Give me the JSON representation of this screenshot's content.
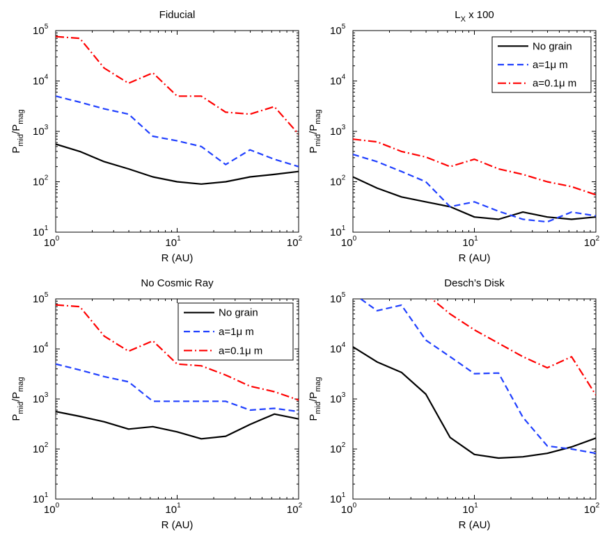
{
  "chart_data": [
    {
      "type": "line",
      "title": "Fiducial",
      "title_sub": "",
      "title_suffix": "",
      "xlabel": "R (AU)",
      "ylabel": {
        "base": "P",
        "num_sub": "mid",
        "den_base": "P",
        "den_sub": "mag"
      },
      "x_scale": "log",
      "y_scale": "log",
      "xlim": [
        1,
        100
      ],
      "ylim": [
        10,
        100000
      ],
      "x_ticks": [
        {
          "base": "10",
          "exp": "0"
        },
        {
          "base": "10",
          "exp": "1"
        },
        {
          "base": "10",
          "exp": "2"
        }
      ],
      "y_ticks": [
        {
          "base": "10",
          "exp": "1"
        },
        {
          "base": "10",
          "exp": "2"
        },
        {
          "base": "10",
          "exp": "3"
        },
        {
          "base": "10",
          "exp": "4"
        },
        {
          "base": "10",
          "exp": "5"
        }
      ],
      "grid": false,
      "legend": null,
      "series": [
        {
          "name": "No grain",
          "color": "#000000",
          "style": "solid",
          "x": [
            1,
            1.58,
            2.51,
            3.98,
            6.31,
            10,
            15.8,
            25.1,
            39.8,
            63.1,
            100
          ],
          "y": [
            560,
            400,
            250,
            180,
            125,
            100,
            90,
            100,
            125,
            140,
            160
          ]
        },
        {
          "name": "a=1μ m",
          "color": "#1f3fff",
          "style": "dashed",
          "x": [
            1,
            1.58,
            2.51,
            3.98,
            6.31,
            10,
            15.8,
            25.1,
            39.8,
            63.1,
            100
          ],
          "y": [
            5000,
            3800,
            2800,
            2200,
            800,
            650,
            500,
            220,
            430,
            280,
            200
          ]
        },
        {
          "name": "a=0.1μ m",
          "color": "#ff0000",
          "style": "dashdot",
          "x": [
            1,
            1.58,
            2.51,
            3.98,
            6.31,
            10,
            15.8,
            25.1,
            39.8,
            63.1,
            100
          ],
          "y": [
            76000,
            70000,
            18000,
            9000,
            14500,
            5000,
            5000,
            2400,
            2200,
            3100,
            880
          ]
        }
      ]
    },
    {
      "type": "line",
      "title": "L",
      "title_sub": "X",
      "title_suffix": " x 100",
      "xlabel": "R (AU)",
      "ylabel": {
        "base": "P",
        "num_sub": "mid",
        "den_base": "P",
        "den_sub": "mag"
      },
      "x_scale": "log",
      "y_scale": "log",
      "xlim": [
        1,
        100
      ],
      "ylim": [
        10,
        100000
      ],
      "x_ticks": [
        {
          "base": "10",
          "exp": "0"
        },
        {
          "base": "10",
          "exp": "1"
        },
        {
          "base": "10",
          "exp": "2"
        }
      ],
      "y_ticks": [
        {
          "base": "10",
          "exp": "1"
        },
        {
          "base": "10",
          "exp": "2"
        },
        {
          "base": "10",
          "exp": "3"
        },
        {
          "base": "10",
          "exp": "4"
        },
        {
          "base": "10",
          "exp": "5"
        }
      ],
      "grid": false,
      "legend": "top-right",
      "series": [
        {
          "name": "No grain",
          "color": "#000000",
          "style": "solid",
          "x": [
            1,
            1.58,
            2.51,
            3.98,
            6.31,
            10,
            15.8,
            25.1,
            39.8,
            63.1,
            100
          ],
          "y": [
            125,
            75,
            50,
            40,
            32,
            20,
            18,
            25,
            20,
            18,
            20
          ]
        },
        {
          "name": "a=1μ m",
          "color": "#1f3fff",
          "style": "dashed",
          "x": [
            1,
            1.58,
            2.51,
            3.98,
            6.31,
            10,
            15.8,
            25.1,
            39.8,
            63.1,
            100
          ],
          "y": [
            350,
            250,
            160,
            100,
            32,
            40,
            26,
            18,
            16,
            25,
            21
          ]
        },
        {
          "name": "a=0.1μ m",
          "color": "#ff0000",
          "style": "dashdot",
          "x": [
            1,
            1.58,
            2.51,
            3.98,
            6.31,
            10,
            15.8,
            25.1,
            39.8,
            63.1,
            100
          ],
          "y": [
            700,
            620,
            400,
            310,
            200,
            280,
            180,
            140,
            100,
            80,
            55
          ]
        }
      ]
    },
    {
      "type": "line",
      "title": "No Cosmic Ray",
      "title_sub": "",
      "title_suffix": "",
      "xlabel": "R (AU)",
      "ylabel": {
        "base": "P",
        "num_sub": "mid",
        "den_base": "P",
        "den_sub": "mag"
      },
      "x_scale": "log",
      "y_scale": "log",
      "xlim": [
        1,
        100
      ],
      "ylim": [
        10,
        100000
      ],
      "x_ticks": [
        {
          "base": "10",
          "exp": "0"
        },
        {
          "base": "10",
          "exp": "1"
        },
        {
          "base": "10",
          "exp": "2"
        }
      ],
      "y_ticks": [
        {
          "base": "10",
          "exp": "1"
        },
        {
          "base": "10",
          "exp": "2"
        },
        {
          "base": "10",
          "exp": "3"
        },
        {
          "base": "10",
          "exp": "4"
        },
        {
          "base": "10",
          "exp": "5"
        }
      ],
      "grid": false,
      "legend": "top-right",
      "series": [
        {
          "name": "No grain",
          "color": "#000000",
          "style": "solid",
          "x": [
            1,
            1.58,
            2.51,
            3.98,
            6.31,
            10,
            15.8,
            25.1,
            39.8,
            63.1,
            100
          ],
          "y": [
            560,
            450,
            350,
            250,
            280,
            220,
            160,
            180,
            310,
            500,
            400
          ]
        },
        {
          "name": "a=1μ m",
          "color": "#1f3fff",
          "style": "dashed",
          "x": [
            1,
            1.58,
            2.51,
            3.98,
            6.31,
            10,
            15.8,
            25.1,
            39.8,
            63.1,
            100
          ],
          "y": [
            5000,
            3800,
            2800,
            2200,
            900,
            900,
            900,
            900,
            600,
            650,
            560
          ]
        },
        {
          "name": "a=0.1μ m",
          "color": "#ff0000",
          "style": "dashdot",
          "x": [
            1,
            1.58,
            2.51,
            3.98,
            6.31,
            10,
            15.8,
            25.1,
            39.8,
            63.1,
            100
          ],
          "y": [
            76000,
            70000,
            18000,
            9000,
            14500,
            5000,
            4600,
            3000,
            1800,
            1400,
            950
          ]
        }
      ]
    },
    {
      "type": "line",
      "title": "Desch’s Disk",
      "title_sub": "",
      "title_suffix": "",
      "xlabel": "R (AU)",
      "ylabel": {
        "base": "P",
        "num_sub": "mid",
        "den_base": "P",
        "den_sub": "mag"
      },
      "x_scale": "log",
      "y_scale": "log",
      "xlim": [
        1,
        100
      ],
      "ylim": [
        10,
        100000
      ],
      "x_ticks": [
        {
          "base": "10",
          "exp": "0"
        },
        {
          "base": "10",
          "exp": "1"
        },
        {
          "base": "10",
          "exp": "2"
        }
      ],
      "y_ticks": [
        {
          "base": "10",
          "exp": "1"
        },
        {
          "base": "10",
          "exp": "2"
        },
        {
          "base": "10",
          "exp": "3"
        },
        {
          "base": "10",
          "exp": "4"
        },
        {
          "base": "10",
          "exp": "5"
        }
      ],
      "grid": false,
      "legend": null,
      "series": [
        {
          "name": "No grain",
          "color": "#000000",
          "style": "solid",
          "x": [
            1,
            1.58,
            2.51,
            3.98,
            6.31,
            10,
            15.8,
            25.1,
            39.8,
            63.1,
            100
          ],
          "y": [
            11000,
            5500,
            3400,
            1250,
            170,
            78,
            66,
            70,
            82,
            110,
            165
          ]
        },
        {
          "name": "a=1μ m",
          "color": "#1f3fff",
          "style": "dashed",
          "x": [
            1,
            1.16,
            1.58,
            2.51,
            3.98,
            6.31,
            10,
            15.8,
            25.1,
            39.8,
            63.1,
            100
          ],
          "y": [
            130000,
            100000,
            58000,
            75000,
            15000,
            7000,
            3200,
            3300,
            430,
            115,
            100,
            82
          ]
        },
        {
          "name": "a=0.1μ m",
          "color": "#ff0000",
          "style": "dashdot",
          "x": [
            3.98,
            4.46,
            6.31,
            10,
            15.8,
            25.1,
            39.8,
            63.1,
            100
          ],
          "y": [
            130000,
            100000,
            50000,
            24000,
            13000,
            7000,
            4200,
            7000,
            1200
          ]
        }
      ]
    }
  ]
}
